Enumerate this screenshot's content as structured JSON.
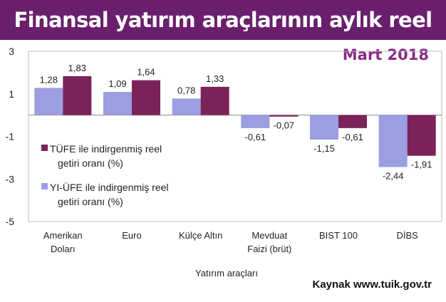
{
  "header": {
    "title": "Finansal yatırım araçlarının aylık reel getiri oranları",
    "subtitle": "Mart 2018"
  },
  "source": "Kaynak www.tuik.gov.tr",
  "colors": {
    "title_bg": "#6a1f6c",
    "tufe": "#7b2259",
    "yiufe": "#9b9ee0"
  },
  "chart_data": {
    "type": "bar",
    "title": "Finansal yatırım araçlarının aylık reel getiri oranları",
    "subtitle": "Mart 2018",
    "xlabel": "Yatırım araçları",
    "ylabel": "",
    "ylim": [
      -5,
      3
    ],
    "yticks": [
      3,
      1,
      -1,
      -3,
      -5
    ],
    "categories": [
      [
        "Amerikan",
        "Doları"
      ],
      [
        "Euro"
      ],
      [
        "Külçe Altın"
      ],
      [
        "Mevduat",
        "Faizi (brüt)"
      ],
      [
        "BIST 100"
      ],
      [
        "DİBS"
      ]
    ],
    "series": [
      {
        "name_lines": [
          "YI-ÜFE ile indirgenmiş reel",
          "getiri oranı (%)"
        ],
        "color": "#9b9ee0",
        "values": [
          1.28,
          1.09,
          0.78,
          -0.61,
          -1.15,
          -2.44
        ],
        "labels": [
          "1,28",
          "1,09",
          "0,78",
          "-0,61",
          "-1,15",
          "-2,44"
        ]
      },
      {
        "name_lines": [
          "TÜFE ile indirgenmiş reel",
          "getiri oranı (%)"
        ],
        "color": "#7b2259",
        "values": [
          1.83,
          1.64,
          1.33,
          -0.07,
          -0.61,
          -1.91
        ],
        "labels": [
          "1,83",
          "1,64",
          "1,33",
          "-0,07",
          "-0,61",
          "-1,91"
        ]
      }
    ],
    "legend": {
      "position": "left",
      "order": [
        1,
        0
      ]
    }
  }
}
